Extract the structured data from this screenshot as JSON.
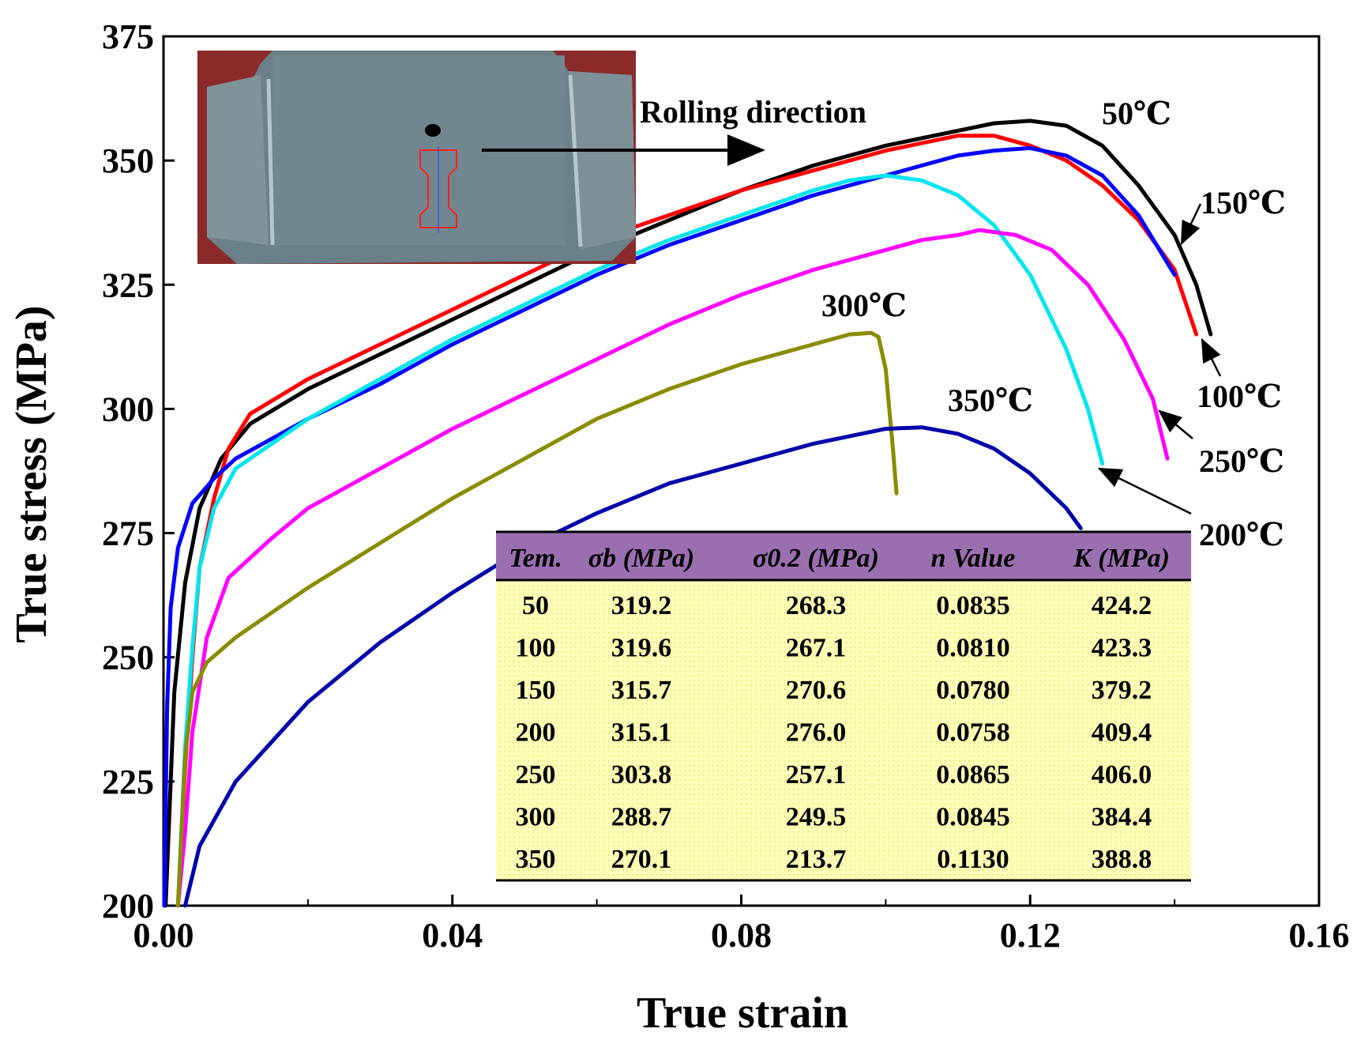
{
  "chart_data": {
    "type": "line",
    "xlabel": "True strain",
    "ylabel": "True stress (MPa)",
    "xlim": [
      0.0,
      0.16
    ],
    "ylim": [
      200,
      375
    ],
    "xticks": [
      "0.00",
      "0.04",
      "0.08",
      "0.12",
      "0.16"
    ],
    "yticks": [
      "200",
      "225",
      "250",
      "275",
      "300",
      "325",
      "350",
      "375"
    ],
    "grid": false,
    "series": [
      {
        "name": "50℃",
        "color": "#000000",
        "points": [
          [
            0.0003,
            200
          ],
          [
            0.0015,
            243
          ],
          [
            0.003,
            265
          ],
          [
            0.005,
            280
          ],
          [
            0.008,
            290
          ],
          [
            0.012,
            297
          ],
          [
            0.02,
            304
          ],
          [
            0.03,
            311
          ],
          [
            0.04,
            318
          ],
          [
            0.05,
            325
          ],
          [
            0.06,
            332
          ],
          [
            0.07,
            338
          ],
          [
            0.08,
            344
          ],
          [
            0.09,
            349
          ],
          [
            0.1,
            353
          ],
          [
            0.11,
            356
          ],
          [
            0.115,
            357.5
          ],
          [
            0.12,
            358
          ],
          [
            0.125,
            357
          ],
          [
            0.13,
            353
          ],
          [
            0.135,
            345
          ],
          [
            0.14,
            335
          ],
          [
            0.143,
            325
          ],
          [
            0.145,
            315
          ]
        ]
      },
      {
        "name": "100℃",
        "color": "#ff0000",
        "points": [
          [
            0.002,
            200
          ],
          [
            0.003,
            228
          ],
          [
            0.004,
            250
          ],
          [
            0.005,
            268
          ],
          [
            0.007,
            282
          ],
          [
            0.009,
            292
          ],
          [
            0.012,
            299
          ],
          [
            0.02,
            306
          ],
          [
            0.03,
            313
          ],
          [
            0.04,
            320
          ],
          [
            0.05,
            327
          ],
          [
            0.06,
            334
          ],
          [
            0.07,
            339
          ],
          [
            0.08,
            344
          ],
          [
            0.09,
            348
          ],
          [
            0.1,
            352
          ],
          [
            0.11,
            355
          ],
          [
            0.115,
            355
          ],
          [
            0.12,
            353
          ],
          [
            0.125,
            350
          ],
          [
            0.13,
            345
          ],
          [
            0.135,
            338
          ],
          [
            0.14,
            328
          ],
          [
            0.143,
            315
          ]
        ]
      },
      {
        "name": "150℃",
        "color": "#0000ff",
        "points": [
          [
            0.0001,
            200
          ],
          [
            0.0005,
            240
          ],
          [
            0.001,
            260
          ],
          [
            0.002,
            272
          ],
          [
            0.004,
            281
          ],
          [
            0.007,
            286
          ],
          [
            0.01,
            290
          ],
          [
            0.02,
            298
          ],
          [
            0.03,
            305
          ],
          [
            0.04,
            313
          ],
          [
            0.05,
            320
          ],
          [
            0.06,
            327
          ],
          [
            0.07,
            333
          ],
          [
            0.08,
            338
          ],
          [
            0.09,
            343
          ],
          [
            0.1,
            347
          ],
          [
            0.11,
            351
          ],
          [
            0.115,
            352
          ],
          [
            0.12,
            352.5
          ],
          [
            0.125,
            351
          ],
          [
            0.13,
            347
          ],
          [
            0.135,
            339
          ],
          [
            0.14,
            327
          ]
        ]
      },
      {
        "name": "200℃",
        "color": "#00e5ee",
        "points": [
          [
            0.002,
            200
          ],
          [
            0.003,
            232
          ],
          [
            0.004,
            252
          ],
          [
            0.005,
            268
          ],
          [
            0.007,
            280
          ],
          [
            0.01,
            288
          ],
          [
            0.02,
            298
          ],
          [
            0.03,
            306
          ],
          [
            0.04,
            314
          ],
          [
            0.05,
            321
          ],
          [
            0.06,
            328
          ],
          [
            0.07,
            334
          ],
          [
            0.08,
            339
          ],
          [
            0.09,
            344
          ],
          [
            0.095,
            346
          ],
          [
            0.1,
            347
          ],
          [
            0.105,
            346
          ],
          [
            0.11,
            343
          ],
          [
            0.115,
            337
          ],
          [
            0.12,
            327
          ],
          [
            0.125,
            312
          ],
          [
            0.128,
            300
          ],
          [
            0.13,
            289
          ]
        ]
      },
      {
        "name": "250℃",
        "color": "#ff00ff",
        "points": [
          [
            0.002,
            200
          ],
          [
            0.003,
            215
          ],
          [
            0.004,
            235
          ],
          [
            0.006,
            254
          ],
          [
            0.009,
            266
          ],
          [
            0.015,
            274
          ],
          [
            0.02,
            280
          ],
          [
            0.03,
            288
          ],
          [
            0.04,
            296
          ],
          [
            0.05,
            303
          ],
          [
            0.06,
            310
          ],
          [
            0.07,
            317
          ],
          [
            0.08,
            323
          ],
          [
            0.09,
            328
          ],
          [
            0.1,
            332
          ],
          [
            0.105,
            334
          ],
          [
            0.11,
            335
          ],
          [
            0.113,
            336
          ],
          [
            0.118,
            335
          ],
          [
            0.123,
            332
          ],
          [
            0.128,
            325
          ],
          [
            0.133,
            314
          ],
          [
            0.137,
            302
          ],
          [
            0.139,
            290
          ]
        ]
      },
      {
        "name": "300℃",
        "color": "#8b8b00",
        "points": [
          [
            0.002,
            200
          ],
          [
            0.003,
            230
          ],
          [
            0.004,
            243
          ],
          [
            0.006,
            249
          ],
          [
            0.01,
            254
          ],
          [
            0.02,
            264
          ],
          [
            0.03,
            273
          ],
          [
            0.04,
            282
          ],
          [
            0.05,
            290
          ],
          [
            0.06,
            298
          ],
          [
            0.07,
            304
          ],
          [
            0.08,
            309
          ],
          [
            0.09,
            313
          ],
          [
            0.095,
            315
          ],
          [
            0.098,
            315.3
          ],
          [
            0.099,
            314.5
          ],
          [
            0.1,
            308
          ],
          [
            0.1005,
            300
          ],
          [
            0.101,
            292
          ],
          [
            0.1015,
            283
          ]
        ]
      },
      {
        "name": "350℃",
        "color": "#0000aa",
        "points": [
          [
            0.003,
            200
          ],
          [
            0.005,
            212
          ],
          [
            0.01,
            225
          ],
          [
            0.02,
            241
          ],
          [
            0.03,
            253
          ],
          [
            0.04,
            263
          ],
          [
            0.05,
            272
          ],
          [
            0.06,
            279
          ],
          [
            0.07,
            285
          ],
          [
            0.08,
            289
          ],
          [
            0.09,
            293
          ],
          [
            0.1,
            296
          ],
          [
            0.105,
            296.3
          ],
          [
            0.11,
            295
          ],
          [
            0.115,
            292
          ],
          [
            0.12,
            287
          ],
          [
            0.125,
            280
          ],
          [
            0.127,
            276
          ]
        ]
      }
    ],
    "labels": [
      {
        "text": "50℃",
        "series": "50℃"
      },
      {
        "text": "150℃",
        "series": "150℃"
      },
      {
        "text": "100℃",
        "series": "100℃"
      },
      {
        "text": "250℃",
        "series": "250℃"
      },
      {
        "text": "200℃",
        "series": "200℃"
      },
      {
        "text": "300℃",
        "series": "300℃"
      },
      {
        "text": "350℃",
        "series": "350℃"
      }
    ],
    "inset_photo": {
      "annotation": "Rolling direction"
    },
    "table": {
      "headers": [
        "Tem.",
        "σb (MPa)",
        "σ0.2 (MPa)",
        "n Value",
        "K (MPa)"
      ],
      "header_color": "#9a6fb0",
      "body_color": "#ffffb8",
      "rows": [
        [
          "50",
          "319.2",
          "268.3",
          "0.0835",
          "424.2"
        ],
        [
          "100",
          "319.6",
          "267.1",
          "0.0810",
          "423.3"
        ],
        [
          "150",
          "315.7",
          "270.6",
          "0.0780",
          "379.2"
        ],
        [
          "200",
          "315.1",
          "276.0",
          "0.0758",
          "409.4"
        ],
        [
          "250",
          "303.8",
          "257.1",
          "0.0865",
          "406.0"
        ],
        [
          "300",
          "288.7",
          "249.5",
          "0.0845",
          "384.4"
        ],
        [
          "350",
          "270.1",
          "213.7",
          "0.1130",
          "388.8"
        ]
      ]
    }
  }
}
